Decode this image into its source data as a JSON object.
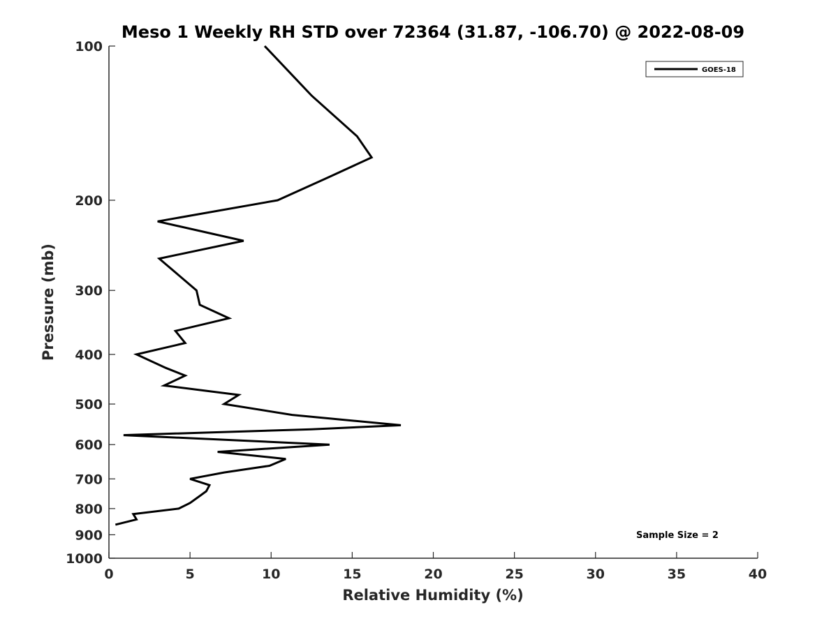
{
  "chart_data": {
    "type": "line",
    "title": "Meso 1 Weekly RH STD over 72364 (31.87, -106.70) @ 2022-08-09",
    "xlabel": "Relative Humidity (%)",
    "ylabel": "Pressure (mb)",
    "xlim": [
      0,
      40
    ],
    "ylim": [
      100,
      1000
    ],
    "y_scale": "log",
    "y_reversed": true,
    "x_ticks": [
      0,
      5,
      10,
      15,
      20,
      25,
      30,
      35,
      40
    ],
    "y_ticks": [
      100,
      200,
      300,
      400,
      500,
      600,
      700,
      800,
      900,
      1000
    ],
    "grid": false,
    "legend_position": "top-right",
    "annotation": "Sample Size = 2",
    "series": [
      {
        "name": "GOES-18",
        "color": "#000000",
        "points": [
          {
            "rh": 9.6,
            "p": 100
          },
          {
            "rh": 12.5,
            "p": 125
          },
          {
            "rh": 15.3,
            "p": 150
          },
          {
            "rh": 16.2,
            "p": 165
          },
          {
            "rh": 13.6,
            "p": 180
          },
          {
            "rh": 10.4,
            "p": 200
          },
          {
            "rh": 3.0,
            "p": 220
          },
          {
            "rh": 8.3,
            "p": 240
          },
          {
            "rh": 3.1,
            "p": 260
          },
          {
            "rh": 5.4,
            "p": 300
          },
          {
            "rh": 5.6,
            "p": 320
          },
          {
            "rh": 7.4,
            "p": 340
          },
          {
            "rh": 4.1,
            "p": 360
          },
          {
            "rh": 4.7,
            "p": 380
          },
          {
            "rh": 1.7,
            "p": 400
          },
          {
            "rh": 3.5,
            "p": 425
          },
          {
            "rh": 4.7,
            "p": 440
          },
          {
            "rh": 3.4,
            "p": 460
          },
          {
            "rh": 8.0,
            "p": 480
          },
          {
            "rh": 7.1,
            "p": 500
          },
          {
            "rh": 11.3,
            "p": 525
          },
          {
            "rh": 18.0,
            "p": 550
          },
          {
            "rh": 12.5,
            "p": 560
          },
          {
            "rh": 0.9,
            "p": 575
          },
          {
            "rh": 13.6,
            "p": 600
          },
          {
            "rh": 6.7,
            "p": 620
          },
          {
            "rh": 10.9,
            "p": 640
          },
          {
            "rh": 9.9,
            "p": 660
          },
          {
            "rh": 7.1,
            "p": 680
          },
          {
            "rh": 5.0,
            "p": 700
          },
          {
            "rh": 6.2,
            "p": 720
          },
          {
            "rh": 6.0,
            "p": 740
          },
          {
            "rh": 5.5,
            "p": 760
          },
          {
            "rh": 5.0,
            "p": 780
          },
          {
            "rh": 4.3,
            "p": 800
          },
          {
            "rh": 1.5,
            "p": 820
          },
          {
            "rh": 1.7,
            "p": 840
          },
          {
            "rh": 0.4,
            "p": 860
          }
        ]
      }
    ]
  }
}
